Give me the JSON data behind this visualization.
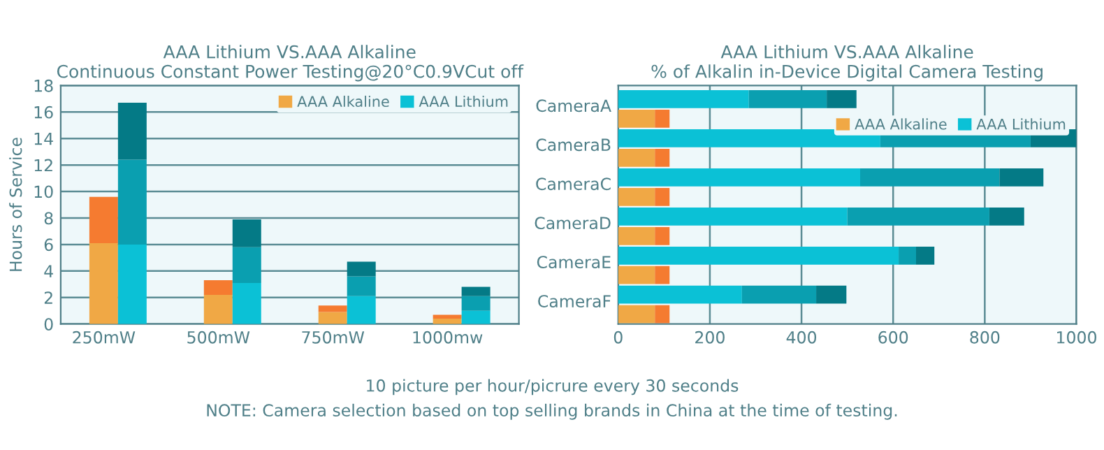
{
  "chart_data": [
    {
      "type": "bar",
      "title": "AAA Lithium VS.AAA Alkaline\nContinuous Constant Power Testing@20°C0.9VCut off",
      "ylabel": "Hours of Service",
      "categories": [
        "250mW",
        null,
        null,
        null,
        "500mW",
        null,
        null,
        null,
        "750mW",
        null,
        null,
        null,
        "1000mw",
        null,
        null,
        null
      ],
      "stacked": true,
      "ylim": [
        0,
        18
      ],
      "yticks": [
        0,
        2,
        4,
        6,
        8,
        10,
        12,
        14,
        16,
        18
      ],
      "grid": "y",
      "legend": "top right",
      "series": [
        {
          "name": "AAA Alkaline",
          "color": "#f0a845",
          "values": [
            6.1,
            null,
            null,
            null,
            2.2,
            null,
            null,
            null,
            0.9,
            null,
            null,
            null,
            0.4,
            null,
            null,
            null
          ]
        },
        {
          "color": "#f57b30",
          "values": [
            3.5,
            null,
            null,
            null,
            1.1,
            null,
            null,
            null,
            0.5,
            null,
            null,
            null,
            0.3,
            null,
            null,
            null
          ]
        },
        {
          "name": "AAA Lithium",
          "color": "#0bc1d6",
          "values": [
            null,
            6.0,
            null,
            null,
            null,
            3.1,
            null,
            null,
            null,
            2.1,
            null,
            null,
            null,
            1.0,
            null,
            null
          ]
        },
        {
          "color": "#0a9fb0",
          "values": [
            null,
            6.4,
            null,
            null,
            null,
            2.7,
            null,
            null,
            null,
            1.5,
            null,
            null,
            null,
            1.1,
            null,
            null
          ]
        },
        {
          "color": "#047a86",
          "values": [
            null,
            4.3,
            null,
            null,
            null,
            2.1,
            null,
            null,
            null,
            1.1,
            null,
            null,
            null,
            0.7,
            null,
            null
          ]
        }
      ],
      "annotations": [
        "10 picture per hour/picrure every 30 seconds",
        "NOTE: Camera selection based on top selling brands in China at the time of testing."
      ]
    },
    {
      "type": "bar",
      "title": "AAA Lithium VS.AAA Alkaline\n% of Alkalin in-Device Digital Camera Testing",
      "orientation": "horizontal",
      "stacked": true,
      "categories": [
        "CameraA",
        null,
        "CameraB",
        null,
        "CameraC",
        null,
        "CameraD",
        null,
        "CameraE",
        null,
        "CameraF",
        null
      ],
      "xlim": [
        0,
        1000
      ],
      "xticks": [
        0,
        200,
        400,
        600,
        800,
        1000
      ],
      "grid": "x",
      "legend": "top right",
      "series": [
        {
          "name": "AAA Lithium",
          "color": "#0bc1d6",
          "values": [
            285,
            null,
            572,
            null,
            528,
            null,
            500,
            null,
            612,
            null,
            270,
            null
          ]
        },
        {
          "color": "#0a9fb0",
          "values": [
            170,
            null,
            328,
            null,
            304,
            null,
            310,
            null,
            38,
            null,
            162,
            null
          ]
        },
        {
          "color": "#047a86",
          "values": [
            65,
            null,
            100,
            null,
            96,
            null,
            76,
            null,
            40,
            null,
            66,
            null
          ]
        },
        {
          "name": "AAA Alkaline",
          "color": "#f0a845",
          "values": [
            null,
            80,
            null,
            80,
            null,
            80,
            null,
            80,
            null,
            80,
            null,
            80
          ]
        },
        {
          "color": "#f57b30",
          "values": [
            null,
            32,
            null,
            32,
            null,
            32,
            null,
            32,
            null,
            32,
            null,
            32
          ]
        }
      ]
    }
  ]
}
